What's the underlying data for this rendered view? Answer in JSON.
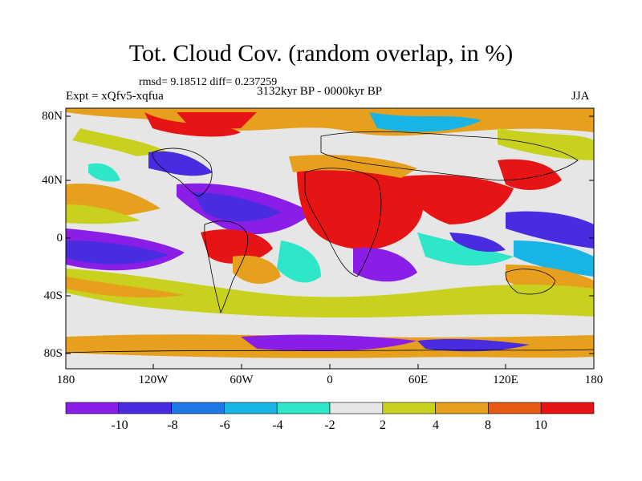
{
  "title": "Tot. Cloud Cov. (random overlap, in %)",
  "stats": "rmsd= 9.18512 diff= 0.237259",
  "experiment": "Expt = xQfv5-xqfua",
  "period": "3132kyr BP - 0000kyr BP",
  "season": "JJA",
  "lat_labels": [
    "80N",
    "40N",
    "0",
    "40S",
    "80S"
  ],
  "lon_labels": [
    "180",
    "120W",
    "60W",
    "0",
    "60E",
    "120E",
    "180"
  ],
  "colorbar": {
    "labels": [
      "-10",
      "-8",
      "-6",
      "-4",
      "-2",
      "2",
      "4",
      "8",
      "10"
    ],
    "colors": [
      "#8a1ee6",
      "#4a2ce0",
      "#1e78e6",
      "#19b4e6",
      "#2ee6c8",
      "#e6e6e6",
      "#c8d21e",
      "#e6a01e",
      "#e65a14",
      "#e61414"
    ]
  },
  "palette": {
    "violet": "#8a1ee6",
    "blue": "#4a2ce0",
    "midblue": "#1e78e6",
    "cyan": "#19b4e6",
    "teal": "#2ee6c8",
    "neutral": "#e6e6e6",
    "yellow": "#c8d21e",
    "orange": "#e6a01e",
    "darkorange": "#e65a14",
    "red": "#e61414"
  }
}
